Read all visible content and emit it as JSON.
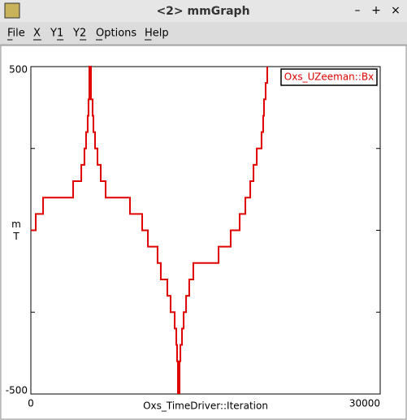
{
  "window": {
    "title": "<2> mmGraph",
    "buttons": [
      "–",
      "+",
      "×"
    ]
  },
  "menu": [
    "File",
    "X",
    "Y1",
    "Y2",
    "Options",
    "Help"
  ],
  "chart_data": {
    "type": "line",
    "step": "post",
    "xlabel": "Oxs_TimeDriver::Iteration",
    "ylabel": "mT",
    "xlim": [
      0,
      30000
    ],
    "xticks": [
      0,
      30000
    ],
    "ylim": [
      -500,
      500
    ],
    "yticks": [
      -500,
      500
    ],
    "minor_yticks": [
      -250,
      0,
      250
    ],
    "legend": "upper right",
    "x": [
      0,
      420,
      1050,
      3630,
      4330,
      4600,
      4740,
      4880,
      4950,
      5020,
      5160,
      5300,
      5370,
      5510,
      5720,
      6000,
      6420,
      8510,
      9560,
      10050,
      10880,
      11160,
      11720,
      12000,
      12350,
      12490,
      12560,
      12630,
      12770,
      12840,
      12980,
      13120,
      13330,
      13600,
      13950,
      16120,
      17160,
      17930,
      18420,
      18840,
      19120,
      19400,
      19810,
      19950,
      20020,
      20160,
      20300
    ],
    "series": [
      {
        "name": "Oxs_UZeeman::Bx",
        "color": "#e00000",
        "values": [
          0,
          50,
          100,
          150,
          200,
          250,
          300,
          350,
          400,
          500,
          400,
          350,
          300,
          250,
          200,
          150,
          100,
          50,
          0,
          -50,
          -100,
          -150,
          -200,
          -250,
          -300,
          -350,
          -400,
          -500,
          -400,
          -350,
          -300,
          -250,
          -200,
          -150,
          -100,
          -50,
          0,
          50,
          100,
          150,
          200,
          250,
          300,
          350,
          400,
          450,
          500
        ]
      }
    ]
  }
}
